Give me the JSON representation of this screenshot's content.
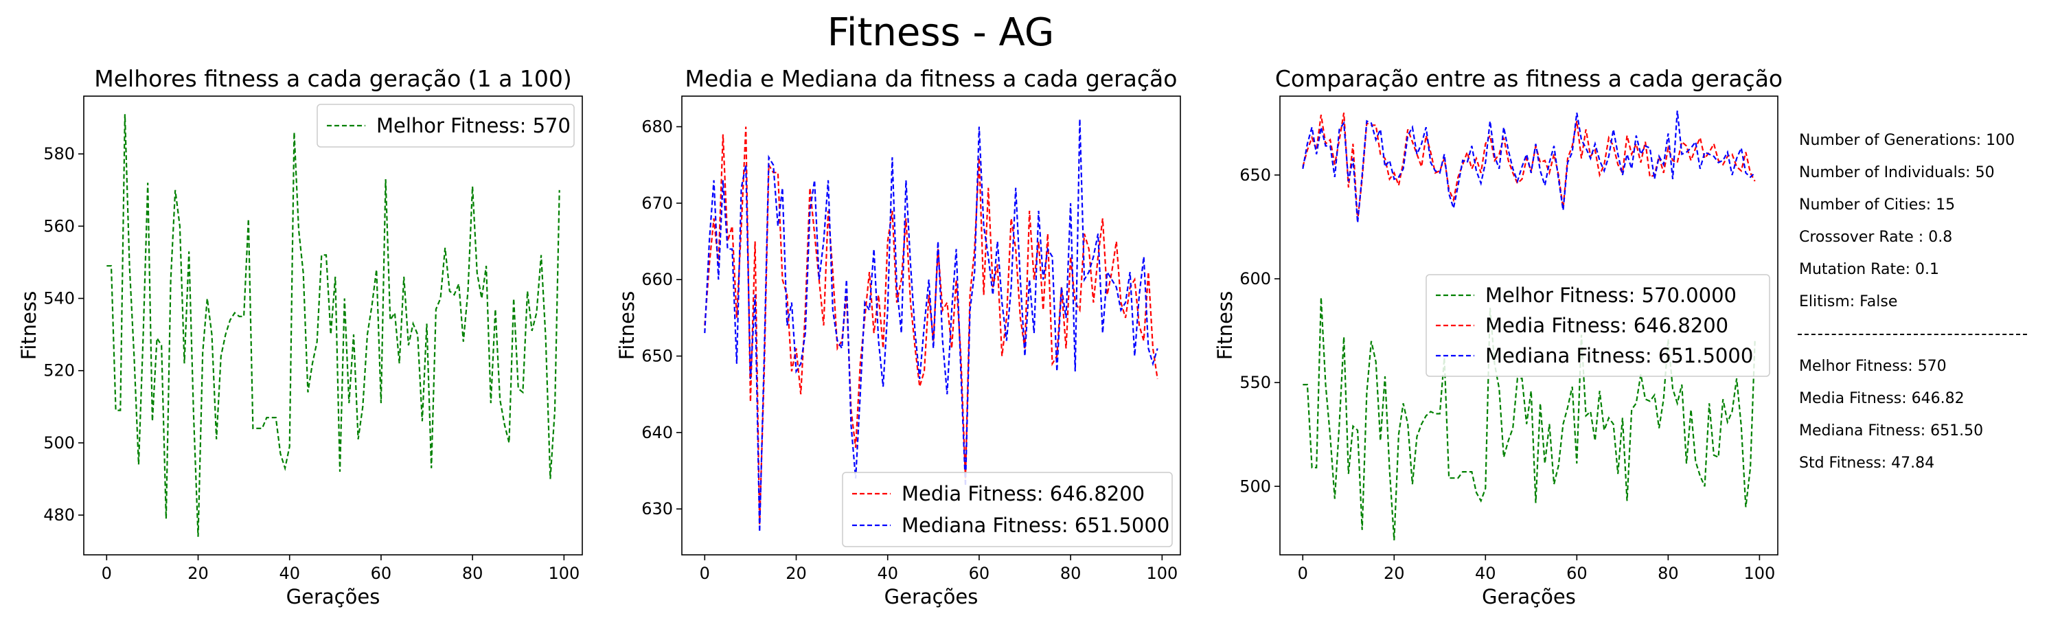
{
  "figure": {
    "title": "Fitness - AG"
  },
  "colors": {
    "best": "#008000",
    "mean": "#ff0000",
    "median": "#0000ff"
  },
  "chart_data": [
    {
      "type": "line",
      "title": "Melhores fitness a cada geração (1 a 100)",
      "xlabel": "Gerações",
      "ylabel": "Fitness",
      "xlim": [
        -5,
        104
      ],
      "ylim": [
        469,
        596
      ],
      "xticks": [
        0,
        20,
        40,
        60,
        80,
        100
      ],
      "yticks": [
        480,
        500,
        520,
        540,
        560,
        580
      ],
      "legend_position": "upper-right",
      "series": [
        {
          "name": "Melhor Fitness: 570",
          "color": "#008000",
          "style": "dashed",
          "y": [
            549,
            549,
            509,
            509,
            591,
            549,
            524,
            494,
            530,
            572,
            506,
            529,
            527,
            479,
            545,
            570,
            560,
            522,
            553,
            508,
            474,
            525,
            540,
            530,
            501,
            524,
            530,
            534,
            536,
            535,
            535,
            562,
            504,
            504,
            504,
            507,
            507,
            507,
            497,
            493,
            499,
            586,
            559,
            547,
            514,
            522,
            528,
            552,
            552,
            530,
            546,
            492,
            540,
            511,
            530,
            501,
            510,
            530,
            538,
            548,
            511,
            573,
            534,
            536,
            522,
            546,
            527,
            533,
            530,
            506,
            533,
            493,
            537,
            540,
            554,
            542,
            541,
            544,
            528,
            542,
            571,
            547,
            540,
            549,
            511,
            537,
            512,
            505,
            500,
            540,
            515,
            514,
            542,
            531,
            536,
            552,
            529,
            490,
            509,
            570
          ]
        }
      ]
    },
    {
      "type": "line",
      "title": "Media e Mediana da fitness a cada geração",
      "xlabel": "Gerações",
      "ylabel": "Fitness",
      "xlim": [
        -5,
        104
      ],
      "ylim": [
        624,
        684
      ],
      "xticks": [
        0,
        20,
        40,
        60,
        80,
        100
      ],
      "yticks": [
        630,
        640,
        650,
        660,
        670,
        680
      ],
      "legend_position": "lower-right",
      "series": [
        {
          "name": "Media Fitness: 646.8200",
          "color": "#ff0000",
          "style": "dashed",
          "y": [
            654,
            662,
            668,
            662,
            679,
            665,
            667,
            655,
            667,
            680,
            644,
            665,
            628,
            648,
            675,
            674,
            674,
            660,
            658,
            648,
            651,
            645,
            656,
            672,
            666,
            660,
            654,
            669,
            661,
            651,
            652,
            658,
            643,
            638,
            649,
            655,
            661,
            653,
            658,
            651,
            665,
            669,
            657,
            660,
            668,
            657,
            651,
            646,
            648,
            658,
            652,
            664,
            656,
            657,
            651,
            660,
            650,
            634,
            658,
            664,
            676,
            658,
            672,
            659,
            662,
            650,
            655,
            668,
            664,
            655,
            651,
            669,
            660,
            665,
            656,
            666,
            649,
            650,
            659,
            651,
            663,
            657,
            656,
            666,
            664,
            657,
            663,
            668,
            658,
            661,
            665,
            657,
            655,
            659,
            660,
            654,
            652,
            661,
            651,
            647
          ]
        },
        {
          "name": "Mediana Fitness: 651.5000",
          "color": "#0000ff",
          "style": "dashed",
          "y": [
            653,
            665,
            673,
            660,
            673,
            664,
            664,
            649,
            672,
            675,
            647,
            658,
            627,
            650,
            676,
            675,
            667,
            672,
            654,
            657,
            648,
            649,
            653,
            669,
            673,
            660,
            665,
            673,
            656,
            652,
            651,
            660,
            641,
            634,
            645,
            657,
            656,
            664,
            652,
            646,
            656,
            676,
            659,
            653,
            673,
            662,
            653,
            647,
            654,
            660,
            651,
            665,
            652,
            645,
            656,
            664,
            648,
            633,
            656,
            661,
            680,
            667,
            663,
            658,
            665,
            657,
            652,
            659,
            672,
            660,
            650,
            660,
            653,
            669,
            660,
            664,
            663,
            648,
            659,
            655,
            670,
            648,
            681,
            660,
            661,
            663,
            666,
            653,
            661,
            660,
            659,
            656,
            657,
            661,
            650,
            658,
            663,
            651,
            649,
            651
          ]
        }
      ]
    },
    {
      "type": "line",
      "title": "Comparação entre as fitness a cada geração",
      "xlabel": "Gerações",
      "ylabel": "Fitness",
      "xlim": [
        -5,
        104
      ],
      "ylim": [
        467,
        688
      ],
      "xticks": [
        0,
        20,
        40,
        60,
        80,
        100
      ],
      "yticks": [
        500,
        550,
        600,
        650
      ],
      "legend_position": "center-right",
      "series": [
        {
          "name": "Melhor Fitness: 570.0000",
          "color": "#008000",
          "style": "dashed",
          "ref": 0
        },
        {
          "name": "Media Fitness: 646.8200",
          "color": "#ff0000",
          "style": "dashed",
          "ref": 1
        },
        {
          "name": "Mediana Fitness: 651.5000",
          "color": "#0000ff",
          "style": "dashed",
          "ref": 2
        }
      ]
    }
  ],
  "info": {
    "params": [
      "Number of Generations: 100",
      "Number of Individuals: 50",
      "Number of Cities: 15",
      "Crossover Rate : 0.8",
      "Mutation Rate: 0.1",
      "Elitism: False"
    ],
    "stats": [
      "Melhor Fitness: 570",
      "Media Fitness: 646.82",
      "Mediana Fitness: 651.50",
      "Std Fitness: 47.84"
    ]
  }
}
